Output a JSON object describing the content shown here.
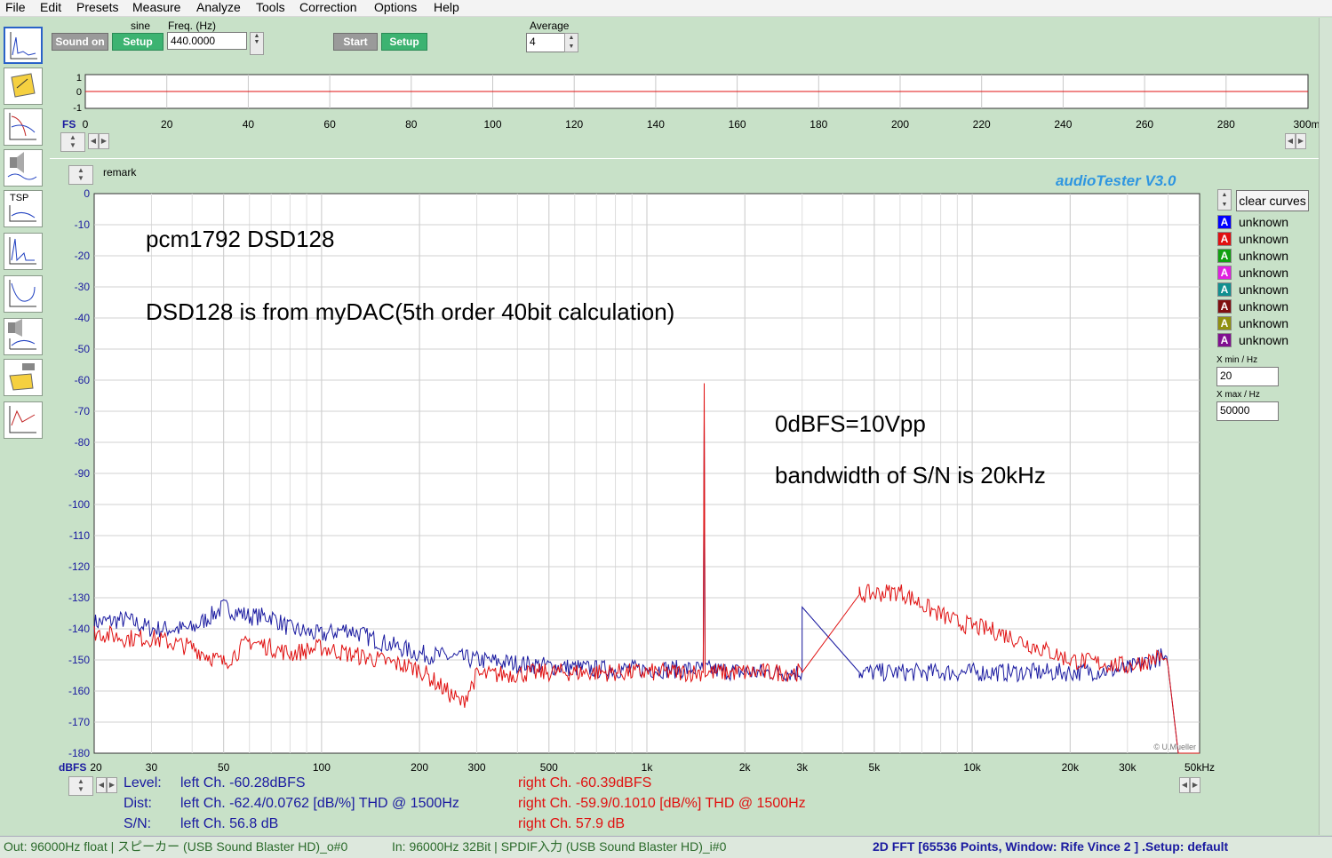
{
  "menu": [
    "File",
    "Edit",
    "Presets",
    "Measure",
    "Analyze",
    "Tools",
    "Correction",
    "Options",
    "Help"
  ],
  "toolbar": {
    "sound_on": "Sound on",
    "setup1": "Setup",
    "waveform_label": "sine",
    "freq_label": "Freq. (Hz)",
    "freq_value": "440.0000",
    "start": "Start",
    "setup2": "Setup",
    "average_label": "Average",
    "average_value": "4"
  },
  "scope": {
    "y_ticks": [
      "1",
      "0",
      "-1"
    ],
    "fs_label": "FS",
    "x_ticks": [
      "0",
      "20",
      "40",
      "60",
      "80",
      "100",
      "120",
      "140",
      "160",
      "180",
      "200",
      "220",
      "240",
      "260",
      "280",
      "300ms"
    ]
  },
  "remark_label": "remark",
  "brand": "audioTester  V3.0",
  "clear_curves": "clear curves",
  "legend": [
    {
      "letter": "A",
      "label": "unknown",
      "color": "#0000ff"
    },
    {
      "letter": "A",
      "label": "unknown",
      "color": "#e01010"
    },
    {
      "letter": "A",
      "label": "unknown",
      "color": "#10a010"
    },
    {
      "letter": "A",
      "label": "unknown",
      "color": "#e020e0"
    },
    {
      "letter": "A",
      "label": "unknown",
      "color": "#109090"
    },
    {
      "letter": "A",
      "label": "unknown",
      "color": "#801010"
    },
    {
      "letter": "A",
      "label": "unknown",
      "color": "#909010"
    },
    {
      "letter": "A",
      "label": "unknown",
      "color": "#801090"
    }
  ],
  "xmin_label": "X min / Hz",
  "xmin_value": "20",
  "xmax_label": "X max / Hz",
  "xmax_value": "50000",
  "copyright": "© U.Mueller",
  "chart_data": {
    "type": "line",
    "x_scale": "log",
    "xlim": [
      20,
      50000
    ],
    "ylim": [
      -180,
      0
    ],
    "ylabel": "dBFS",
    "y_ticks": [
      "0",
      "-10",
      "-20",
      "-30",
      "-40",
      "-50",
      "-60",
      "-70",
      "-80",
      "-90",
      "-100",
      "-110",
      "-120",
      "-130",
      "-140",
      "-150",
      "-160",
      "-170",
      "-180"
    ],
    "x_ticks": [
      {
        "value": 20,
        "label": "20"
      },
      {
        "value": 30,
        "label": "30"
      },
      {
        "value": 50,
        "label": "50"
      },
      {
        "value": 100,
        "label": "100"
      },
      {
        "value": 200,
        "label": "200"
      },
      {
        "value": 300,
        "label": "300"
      },
      {
        "value": 500,
        "label": "500"
      },
      {
        "value": 1000,
        "label": "1k"
      },
      {
        "value": 2000,
        "label": "2k"
      },
      {
        "value": 3000,
        "label": "3k"
      },
      {
        "value": 5000,
        "label": "5k"
      },
      {
        "value": 10000,
        "label": "10k"
      },
      {
        "value": 20000,
        "label": "20k"
      },
      {
        "value": 30000,
        "label": "30k"
      },
      {
        "value": 50000,
        "label": "50kHz"
      }
    ],
    "annotations": [
      "pcm1792 DSD128",
      "DSD128 is from myDAC(5th order 40bit calculation)",
      "0dBFS=10Vpp",
      "bandwidth of S/N is 20kHz"
    ],
    "grid": true,
    "series": [
      {
        "color": "#1a1aa0",
        "x": [
          20,
          25,
          30,
          40,
          50,
          60,
          70,
          80,
          100,
          120,
          150,
          200,
          300,
          500,
          700,
          1000,
          1490,
          1500,
          1510,
          2000,
          3000,
          3000.5,
          4500,
          6000,
          8000,
          10000,
          15000,
          20000,
          30000,
          38000,
          40000,
          43000,
          45000,
          50000
        ],
        "y": [
          -138,
          -137,
          -140,
          -140,
          -133,
          -136,
          -136,
          -140,
          -142,
          -140,
          -144,
          -148,
          -150,
          -152,
          -153,
          -153,
          -153,
          -73,
          -153,
          -154,
          -154,
          -133,
          -154,
          -154,
          -154,
          -154,
          -154,
          -154,
          -153,
          -149,
          -152,
          -180,
          -180,
          -180
        ]
      },
      {
        "color": "#e01010",
        "x": [
          20,
          25,
          30,
          40,
          50,
          60,
          70,
          80,
          100,
          120,
          150,
          200,
          270,
          300,
          500,
          700,
          1000,
          1490,
          1500,
          1510,
          2000,
          3000,
          4500,
          6000,
          7500,
          9000,
          12000,
          20000,
          30000,
          38000,
          40000,
          43000,
          45000,
          50000
        ],
        "y": [
          -141,
          -143,
          -143,
          -146,
          -151,
          -144,
          -146,
          -148,
          -146,
          -148,
          -150,
          -153,
          -164,
          -155,
          -154,
          -154,
          -154,
          -154,
          -61,
          -154,
          -154,
          -154,
          -129,
          -128,
          -134,
          -138,
          -141,
          -150,
          -152,
          -149,
          -152,
          -180,
          -180,
          -180
        ]
      }
    ]
  },
  "readouts": {
    "level_label": "Level:",
    "dist_label": "Dist:",
    "sn_label": "S/N:",
    "left_level": "left Ch. -60.28dBFS",
    "left_dist": "left Ch. -62.4/0.0762 [dB/%] THD @ 1500Hz",
    "left_sn": "left Ch. 56.8 dB",
    "right_level": "right Ch. -60.39dBFS",
    "right_dist": "right Ch. -59.9/0.1010 [dB/%] THD @ 1500Hz",
    "right_sn": "right Ch. 57.9 dB"
  },
  "status": {
    "out": "Out: 96000Hz float  | スピーカー (USB Sound Blaster HD)_o#0",
    "in": "In: 96000Hz 32Bit  | SPDIF入力 (USB Sound Blaster HD)_i#0",
    "mode": "2D FFT [65536 Points, Window: Rife Vince 2 ]  .Setup:  default"
  }
}
